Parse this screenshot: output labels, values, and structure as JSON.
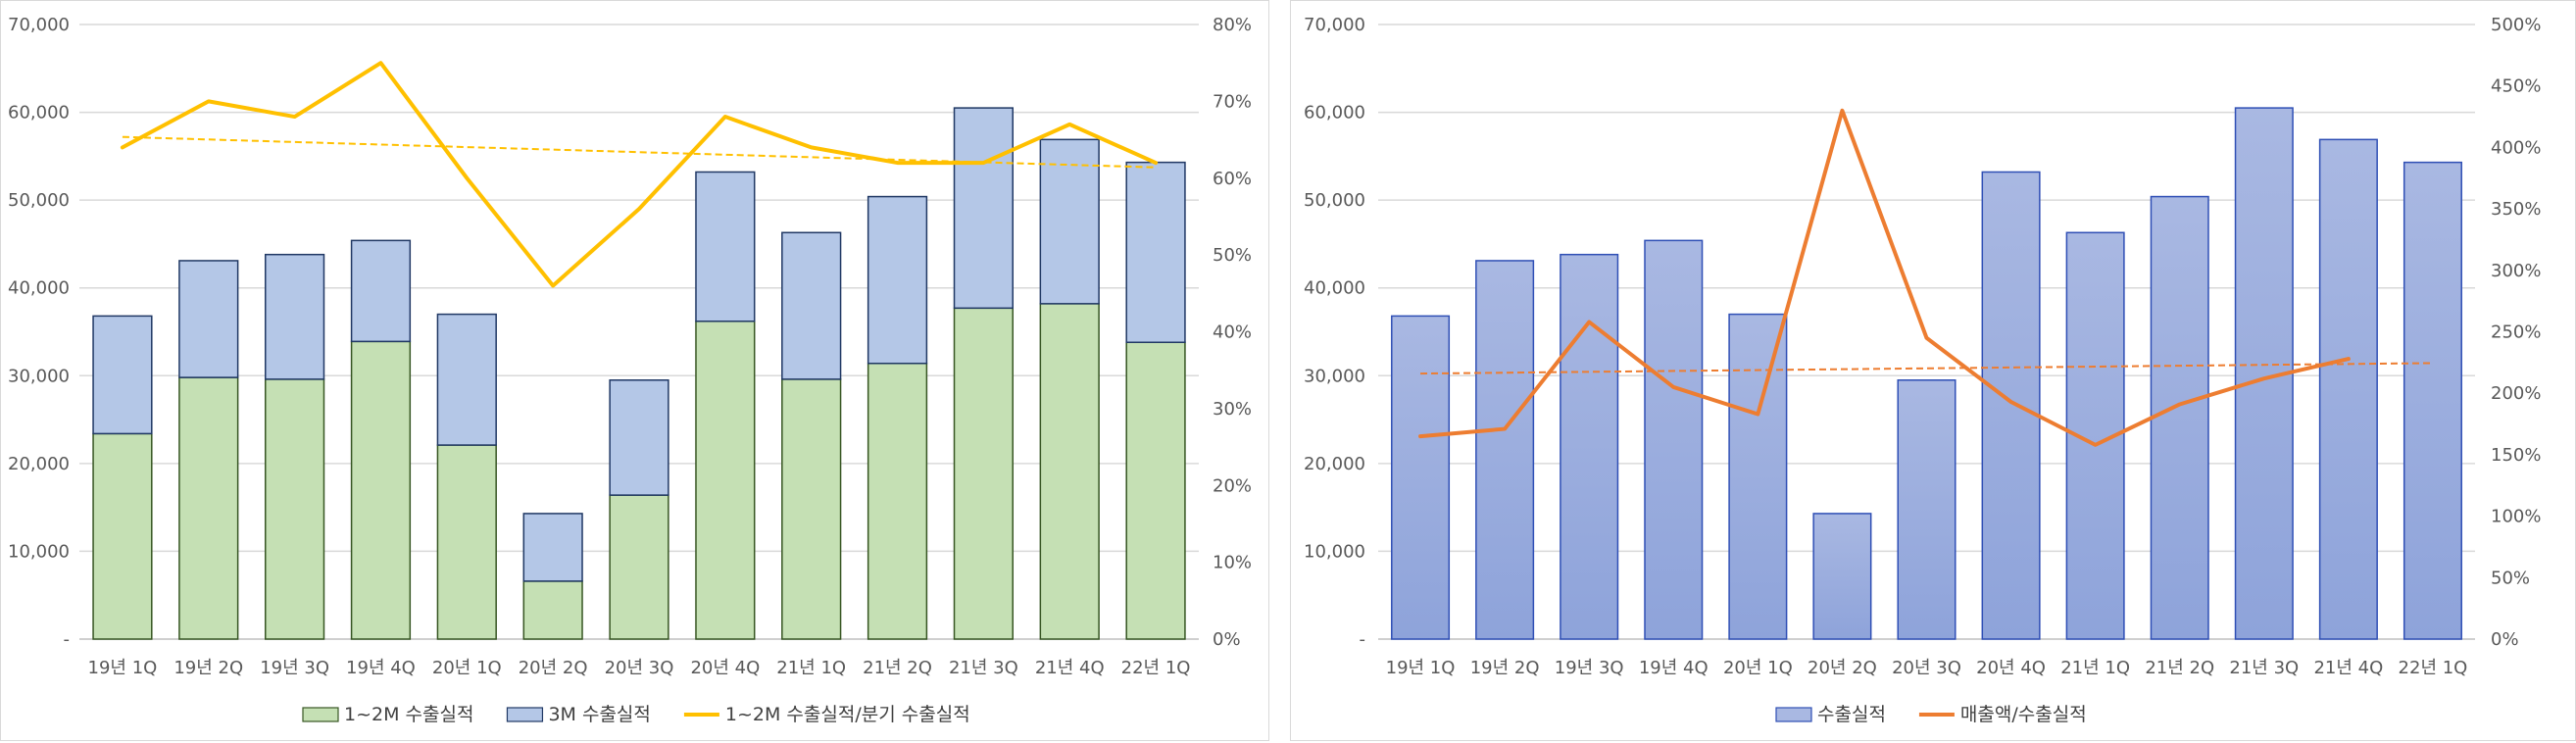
{
  "chart_data": [
    {
      "type": "bar",
      "stacked": true,
      "categories": [
        "19년 1Q",
        "19년 2Q",
        "19년 3Q",
        "19년 4Q",
        "20년 1Q",
        "20년 2Q",
        "20년 3Q",
        "20년 4Q",
        "21년 1Q",
        "21년 2Q",
        "21년 3Q",
        "21년 4Q",
        "22년 1Q"
      ],
      "series": [
        {
          "name": "1~2M 수출실적",
          "kind": "bar",
          "axis": "left",
          "color": "#c5e0b4",
          "stroke": "#375623",
          "values": [
            23400,
            29800,
            29600,
            33900,
            22100,
            6600,
            16400,
            36200,
            29600,
            31400,
            37700,
            38200,
            33800
          ]
        },
        {
          "name": "3M 수출실적",
          "kind": "bar",
          "axis": "left",
          "color": "#b4c7e7",
          "stroke": "#203864",
          "values": [
            13400,
            13300,
            14200,
            11500,
            14900,
            7700,
            13100,
            17000,
            16700,
            19000,
            22800,
            18700,
            20500
          ]
        },
        {
          "name": "1~2M 수출실적/분기 수출실적",
          "kind": "line",
          "axis": "right",
          "color": "#ffc000",
          "values": [
            0.64,
            0.7,
            0.68,
            0.75,
            0.6,
            0.46,
            0.56,
            0.68,
            0.64,
            0.62,
            0.62,
            0.67,
            0.62
          ]
        }
      ],
      "trendline": {
        "series": "1~2M 수출실적/분기 수출실적",
        "color": "#ffc000",
        "style": "dashed"
      },
      "y_left": {
        "min": 0,
        "max": 70000,
        "step": 10000,
        "tick_labels": [
          "-",
          "10,000",
          "20,000",
          "30,000",
          "40,000",
          "50,000",
          "60,000",
          "70,000"
        ]
      },
      "y_right": {
        "min": 0,
        "max": 0.8,
        "step": 0.1,
        "tick_labels": [
          "0%",
          "10%",
          "20%",
          "30%",
          "40%",
          "50%",
          "60%",
          "70%",
          "80%"
        ]
      },
      "grid": true,
      "legend_position": "bottom"
    },
    {
      "type": "bar",
      "stacked": false,
      "categories": [
        "19년 1Q",
        "19년 2Q",
        "19년 3Q",
        "19년 4Q",
        "20년 1Q",
        "20년 2Q",
        "20년 3Q",
        "20년 4Q",
        "21년 1Q",
        "21년 2Q",
        "21년 3Q",
        "21년 4Q",
        "22년 1Q"
      ],
      "series": [
        {
          "name": "수출실적",
          "kind": "bar",
          "axis": "left",
          "color_top": "#a9b8e2",
          "color_bottom": "#8ea3da",
          "stroke": "#2f4fb5",
          "values": [
            36800,
            43100,
            43800,
            45400,
            37000,
            14300,
            29500,
            53200,
            46300,
            50400,
            60500,
            56900,
            54300
          ]
        },
        {
          "name": "매출액/수출실적",
          "kind": "line",
          "axis": "right",
          "color": "#ed7d31",
          "values": [
            1.65,
            1.71,
            2.58,
            2.05,
            1.83,
            4.3,
            2.45,
            1.93,
            1.58,
            1.91,
            2.12,
            2.28,
            null
          ]
        }
      ],
      "trendline": {
        "series": "매출액/수출실적",
        "color": "#ed7d31",
        "style": "dashed"
      },
      "y_left": {
        "min": 0,
        "max": 70000,
        "step": 10000,
        "tick_labels": [
          "-",
          "10,000",
          "20,000",
          "30,000",
          "40,000",
          "50,000",
          "60,000",
          "70,000"
        ]
      },
      "y_right": {
        "min": 0,
        "max": 5,
        "step": 0.5,
        "tick_labels": [
          "0%",
          "50%",
          "100%",
          "150%",
          "200%",
          "250%",
          "300%",
          "350%",
          "400%",
          "450%",
          "500%"
        ]
      },
      "grid": true,
      "legend_position": "bottom"
    }
  ]
}
